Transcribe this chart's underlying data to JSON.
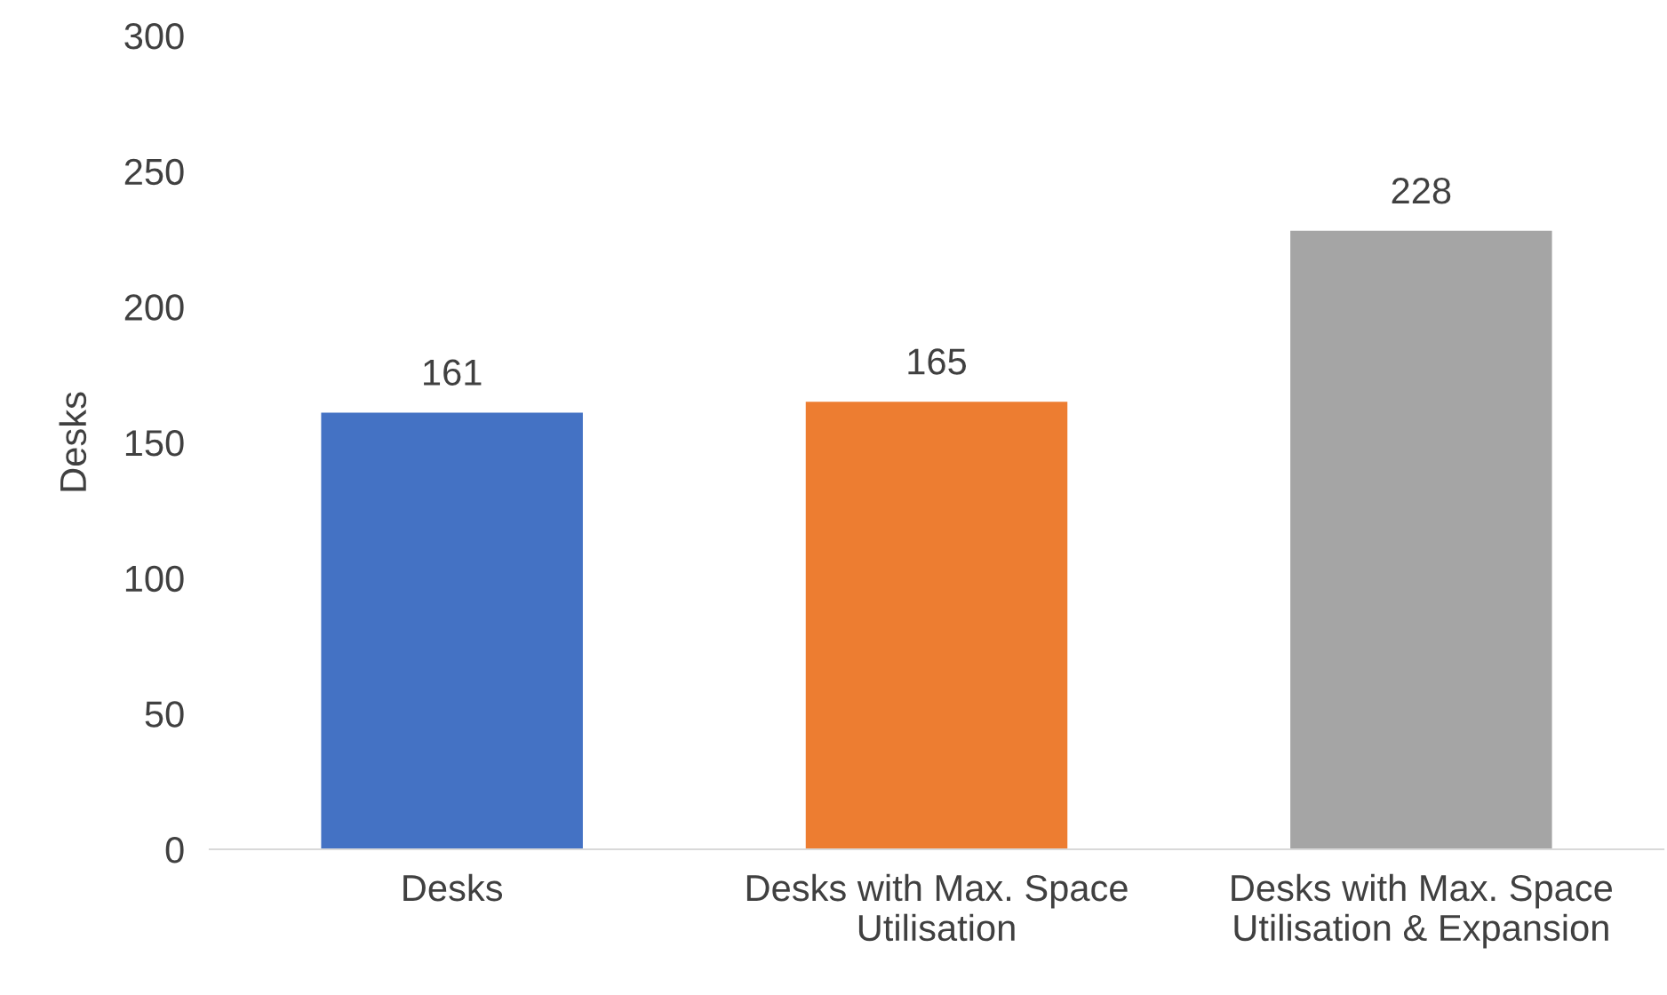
{
  "chart_data": {
    "type": "bar",
    "ylabel": "Desks",
    "categories": [
      "Desks",
      "Desks with Max. Space\nUtilisation",
      "Desks with Max. Space\nUtilisation & Expansion"
    ],
    "values": [
      161,
      165,
      228
    ],
    "colors": [
      "#4472c4",
      "#ed7d31",
      "#a5a5a5"
    ],
    "ylim": [
      0,
      300
    ],
    "yticks": [
      0,
      50,
      100,
      150,
      200,
      250,
      300
    ],
    "grid": false,
    "data_labels": true
  }
}
